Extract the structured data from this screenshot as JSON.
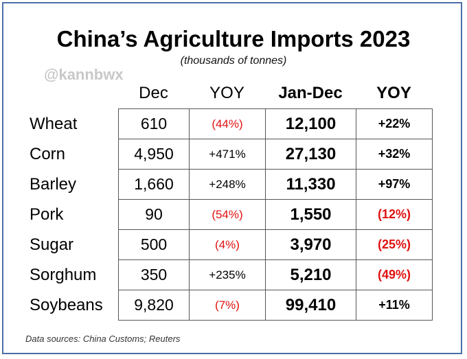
{
  "title": "China’s Agriculture Imports 2023",
  "subtitle": "(thousands of tonnes)",
  "watermark": "@kannbwx",
  "headers": {
    "dec": "Dec",
    "dec_yoy": "YOY",
    "jan_dec": "Jan-Dec",
    "jan_dec_yoy": "YOY"
  },
  "rows": [
    {
      "label": "Wheat",
      "dec": "610",
      "dec_yoy": "(44%)",
      "jan_dec": "12,100",
      "jan_dec_yoy": "+22%"
    },
    {
      "label": "Corn",
      "dec": "4,950",
      "dec_yoy": "+471%",
      "jan_dec": "27,130",
      "jan_dec_yoy": "+32%"
    },
    {
      "label": "Barley",
      "dec": "1,660",
      "dec_yoy": "+248%",
      "jan_dec": "11,330",
      "jan_dec_yoy": "+97%"
    },
    {
      "label": "Pork",
      "dec": "90",
      "dec_yoy": "(54%)",
      "jan_dec": "1,550",
      "jan_dec_yoy": "(12%)"
    },
    {
      "label": "Sugar",
      "dec": "500",
      "dec_yoy": "(4%)",
      "jan_dec": "3,970",
      "jan_dec_yoy": "(25%)"
    },
    {
      "label": "Sorghum",
      "dec": "350",
      "dec_yoy": "+235%",
      "jan_dec": "5,210",
      "jan_dec_yoy": "(49%)"
    },
    {
      "label": "Soybeans",
      "dec": "9,820",
      "dec_yoy": "(7%)",
      "jan_dec": "99,410",
      "jan_dec_yoy": "+11%"
    }
  ],
  "source": "Data sources: China Customs; Reuters",
  "colors": {
    "frame": "#4a6fa5",
    "negative": "#e01010",
    "text": "#000000",
    "watermark": "#c8c8c8"
  }
}
